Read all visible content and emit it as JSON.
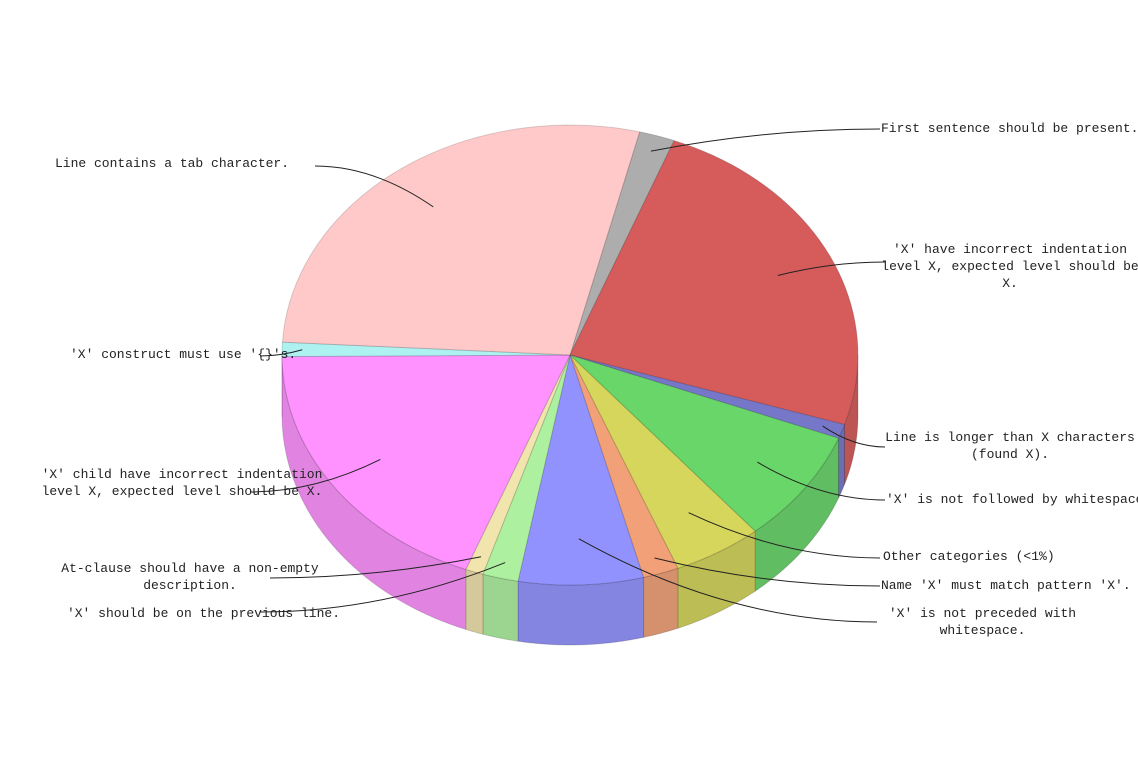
{
  "chart_data": {
    "type": "pie3d",
    "start_angle": 14,
    "categories": [
      "First sentence should be present.",
      "'X' have incorrect indentation level X, expected level should be X.",
      "Line is longer than X characters (found X).",
      "'X' is not followed by whitespace.",
      "Other categories (<1%)",
      "Name 'X' must match pattern 'X'.",
      "'X' is not preceded with whitespace.",
      "'X' should be on the previous line.",
      "At-clause should have a non-empty description.",
      "'X' child have incorrect indentation level X, expected level should be X.",
      "'X' construct must use '{}'s.",
      "Line contains a tab character."
    ],
    "values": [
      2,
      24,
      1,
      8,
      5,
      2,
      7,
      2,
      1,
      19,
      1,
      28
    ],
    "colors": [
      "#999999",
      "#cc3333",
      "#5555bb",
      "#44cc44",
      "#cccc33",
      "#ee8855",
      "#7777ff",
      "#99ee88",
      "#eedd99",
      "#ff77ff",
      "#99eeee",
      "#ffbbbb"
    ]
  }
}
